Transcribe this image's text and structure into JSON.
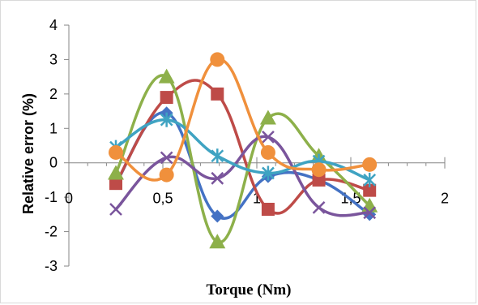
{
  "chart_data": {
    "type": "scatter",
    "title": "",
    "xlabel": "Torque (Nm)",
    "ylabel": "Relative error (%)",
    "xlim": [
      0,
      2
    ],
    "ylim": [
      -3,
      4
    ],
    "x_ticks": [
      0,
      0.5,
      1,
      1.5,
      2
    ],
    "x_tick_labels": [
      "0",
      "0,5",
      "1",
      "1,5",
      "2"
    ],
    "y_ticks": [
      -3,
      -2,
      -1,
      0,
      1,
      2,
      3,
      4
    ],
    "y_tick_labels": [
      "-3",
      "-2",
      "-1",
      "0",
      "1",
      "2",
      "3",
      "4"
    ],
    "grid": false,
    "legend": "none",
    "smooth_lines": true,
    "series": [
      {
        "color": "#4472c4",
        "marker": "diamond",
        "x": [
          0.25,
          0.52,
          0.79,
          1.06,
          1.33,
          1.6
        ],
        "y": [
          -0.6,
          1.45,
          -1.55,
          -0.4,
          -0.5,
          -1.5
        ]
      },
      {
        "color": "#be4b48",
        "marker": "square",
        "x": [
          0.25,
          0.52,
          0.79,
          1.06,
          1.33,
          1.6
        ],
        "y": [
          -0.6,
          1.9,
          2.0,
          -1.35,
          -0.5,
          -0.8
        ]
      },
      {
        "color": "#8db04a",
        "marker": "triangle",
        "x": [
          0.25,
          0.52,
          0.79,
          1.06,
          1.33,
          1.6
        ],
        "y": [
          -0.3,
          2.5,
          -2.3,
          1.3,
          0.2,
          -1.25
        ]
      },
      {
        "color": "#7a559c",
        "marker": "x",
        "x": [
          0.25,
          0.52,
          0.79,
          1.06,
          1.33,
          1.6
        ],
        "y": [
          -1.35,
          0.15,
          -0.45,
          0.75,
          -1.3,
          -1.45
        ]
      },
      {
        "color": "#3fa3c2",
        "marker": "star",
        "x": [
          0.25,
          0.52,
          0.79,
          1.06,
          1.33,
          1.6
        ],
        "y": [
          0.45,
          1.25,
          0.2,
          -0.3,
          0.05,
          -0.5
        ]
      },
      {
        "color": "#f0903c",
        "marker": "circle",
        "x": [
          0.25,
          0.52,
          0.79,
          1.06,
          1.33,
          1.6
        ],
        "y": [
          0.3,
          -0.35,
          3.0,
          0.3,
          -0.2,
          -0.05
        ]
      }
    ]
  }
}
